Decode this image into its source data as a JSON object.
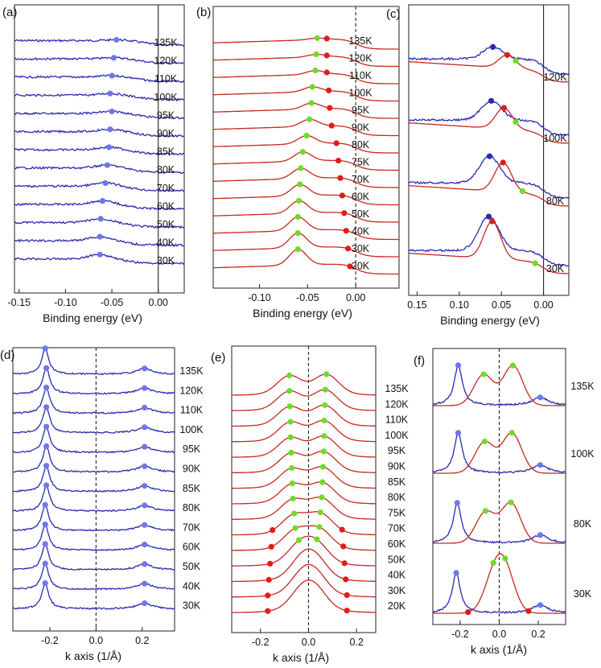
{
  "figure": {
    "colors": {
      "blue": "#2a2bb0",
      "red": "#c7281f",
      "blue_dot": "#6f78ea",
      "green_dot": "#6fdb2a",
      "red_dot": "#e21b1b",
      "frame": "#222222"
    }
  },
  "chart_data": [
    {
      "panel": "(a)",
      "type": "line",
      "subtype": "waterfall-EDC",
      "xlabel": "Binding energy (eV)",
      "ylabel": "",
      "xlim": [
        -0.155,
        0.028
      ],
      "x_ticks": [
        -0.15,
        -0.1,
        -0.05,
        0.0
      ],
      "x_tick_labels": [
        "-0.15",
        "-0.10",
        "-0.05",
        "0.00"
      ],
      "fermi_line": {
        "x": 0.0,
        "style": "solid"
      },
      "series": [
        {
          "name": "135K",
          "peak_x": -0.035,
          "peak_marker": "blue"
        },
        {
          "name": "120K",
          "peak_x": -0.038,
          "peak_marker": "blue"
        },
        {
          "name": "110K",
          "peak_x": -0.04,
          "peak_marker": "blue"
        },
        {
          "name": "100K",
          "peak_x": -0.042,
          "peak_marker": "blue"
        },
        {
          "name": "95K",
          "peak_x": -0.04,
          "peak_marker": "blue"
        },
        {
          "name": "90K",
          "peak_x": -0.042,
          "peak_marker": "blue"
        },
        {
          "name": "85K",
          "peak_x": -0.043,
          "peak_marker": "blue"
        },
        {
          "name": "80K",
          "peak_x": -0.045,
          "peak_marker": "blue"
        },
        {
          "name": "70K",
          "peak_x": -0.047,
          "peak_marker": "blue"
        },
        {
          "name": "60K",
          "peak_x": -0.05,
          "peak_marker": "blue"
        },
        {
          "name": "50K",
          "peak_x": -0.052,
          "peak_marker": "blue"
        },
        {
          "name": "40K",
          "peak_x": -0.053,
          "peak_marker": "blue"
        },
        {
          "name": "30K",
          "peak_x": -0.053,
          "peak_marker": "blue"
        }
      ]
    },
    {
      "panel": "(b)",
      "type": "line",
      "subtype": "waterfall-EDC-fit",
      "xlabel": "Binding energy (eV)",
      "ylabel": "",
      "xlim": [
        -0.148,
        0.045
      ],
      "x_ticks": [
        -0.1,
        -0.05,
        0.0
      ],
      "x_tick_labels": [
        "-0.10",
        "-0.05",
        "0.00"
      ],
      "fermi_line": {
        "x": 0.0,
        "style": "dashed"
      },
      "series": [
        {
          "name": "135K",
          "green_x": -0.04,
          "red_x": -0.03
        },
        {
          "name": "120K",
          "green_x": -0.041,
          "red_x": -0.03
        },
        {
          "name": "110K",
          "green_x": -0.042,
          "red_x": -0.03
        },
        {
          "name": "100K",
          "green_x": -0.045,
          "red_x": -0.028
        },
        {
          "name": "95K",
          "green_x": -0.046,
          "red_x": -0.027
        },
        {
          "name": "90K",
          "green_x": -0.048,
          "red_x": -0.025
        },
        {
          "name": "80K",
          "green_x": -0.051,
          "red_x": -0.02
        },
        {
          "name": "75K",
          "green_x": -0.055,
          "red_x": -0.018
        },
        {
          "name": "70K",
          "green_x": -0.057,
          "red_x": -0.016
        },
        {
          "name": "60K",
          "green_x": -0.058,
          "red_x": -0.014
        },
        {
          "name": "50K",
          "green_x": -0.059,
          "red_x": -0.012
        },
        {
          "name": "40K",
          "green_x": -0.06,
          "red_x": -0.01
        },
        {
          "name": "30K",
          "green_x": -0.06,
          "red_x": -0.008
        },
        {
          "name": "20K",
          "green_x": -0.06,
          "red_x": -0.006
        }
      ]
    },
    {
      "panel": "(c)",
      "type": "line",
      "subtype": "EDC-comparison",
      "xlabel": "Binding energy (eV)",
      "ylabel": "",
      "xlim": [
        0.16,
        -0.03
      ],
      "x_ticks": [
        0.15,
        0.1,
        0.05,
        0.0
      ],
      "x_tick_labels": [
        "0.15",
        "0.10",
        "0.05",
        "0.00"
      ],
      "fermi_line": {
        "x": 0.0,
        "style": "solid"
      },
      "series": [
        {
          "name": "120K",
          "blue_peak": 0.06,
          "red_peak": 0.043,
          "green_x": 0.033
        },
        {
          "name": "100K",
          "blue_peak": 0.062,
          "red_peak": 0.047,
          "green_x": 0.033
        },
        {
          "name": "80K",
          "blue_peak": 0.064,
          "red_peak": 0.048,
          "green_x": 0.025
        },
        {
          "name": "30K",
          "blue_peak": 0.065,
          "red_peak": 0.061,
          "green_x": 0.01
        }
      ]
    },
    {
      "panel": "(d)",
      "type": "line",
      "subtype": "waterfall-MDC",
      "xlabel": "k axis (1/Å)",
      "ylabel": "",
      "xlim": [
        -0.36,
        0.34
      ],
      "x_ticks": [
        -0.2,
        0.0,
        0.2
      ],
      "x_tick_labels": [
        "-0.2",
        "0.0",
        "0.2"
      ],
      "zero_line": {
        "x": 0.0,
        "style": "dashed"
      },
      "series": [
        {
          "name": "135K",
          "left_peak": -0.22,
          "right_peak": 0.21
        },
        {
          "name": "120K",
          "left_peak": -0.215,
          "right_peak": 0.21
        },
        {
          "name": "110K",
          "left_peak": -0.215,
          "right_peak": 0.21
        },
        {
          "name": "100K",
          "left_peak": -0.215,
          "right_peak": 0.21
        },
        {
          "name": "95K",
          "left_peak": -0.215,
          "right_peak": 0.21
        },
        {
          "name": "90K",
          "left_peak": -0.215,
          "right_peak": 0.21
        },
        {
          "name": "85K",
          "left_peak": -0.215,
          "right_peak": 0.21
        },
        {
          "name": "80K",
          "left_peak": -0.215,
          "right_peak": 0.21
        },
        {
          "name": "70K",
          "left_peak": -0.22,
          "right_peak": 0.21
        },
        {
          "name": "60K",
          "left_peak": -0.22,
          "right_peak": 0.21
        },
        {
          "name": "50K",
          "left_peak": -0.22,
          "right_peak": 0.21
        },
        {
          "name": "40K",
          "left_peak": -0.22,
          "right_peak": 0.21
        },
        {
          "name": "30K",
          "left_peak": -0.22,
          "right_peak": 0.21
        }
      ]
    },
    {
      "panel": "(e)",
      "type": "line",
      "subtype": "waterfall-MDC-fit",
      "xlabel": "k axis (1/Å)",
      "ylabel": "",
      "xlim": [
        -0.32,
        0.28
      ],
      "x_ticks": [
        -0.2,
        0.0,
        0.2
      ],
      "x_tick_labels": [
        "-0.2",
        "0.0",
        "0.2"
      ],
      "zero_line": {
        "x": 0.0,
        "style": "dashed"
      },
      "series": [
        {
          "name": "135K",
          "green": [
            -0.08,
            0.075
          ],
          "red": []
        },
        {
          "name": "120K",
          "green": [
            -0.08,
            0.07
          ],
          "red": []
        },
        {
          "name": "110K",
          "green": [
            -0.078,
            0.068
          ],
          "red": []
        },
        {
          "name": "100K",
          "green": [
            -0.075,
            0.065
          ],
          "red": []
        },
        {
          "name": "95K",
          "green": [
            -0.075,
            0.065
          ],
          "red": []
        },
        {
          "name": "90K",
          "green": [
            -0.072,
            0.063
          ],
          "red": []
        },
        {
          "name": "85K",
          "green": [
            -0.07,
            0.06
          ],
          "red": []
        },
        {
          "name": "80K",
          "green": [
            -0.068,
            0.058
          ],
          "red": []
        },
        {
          "name": "75K",
          "green": [
            -0.065,
            0.055
          ],
          "red": []
        },
        {
          "name": "70K",
          "green": [
            -0.06,
            0.05
          ],
          "red": [
            -0.15,
            0.14
          ]
        },
        {
          "name": "60K",
          "green": [
            -0.055,
            0.045
          ],
          "red": [
            -0.155,
            0.145
          ]
        },
        {
          "name": "50K",
          "green": [
            -0.04,
            0.035
          ],
          "red": [
            -0.16,
            0.15
          ]
        },
        {
          "name": "40K",
          "green": [],
          "red": [
            -0.165,
            0.155
          ]
        },
        {
          "name": "30K",
          "green": [],
          "red": [
            -0.17,
            0.16
          ]
        },
        {
          "name": "20K",
          "green": [],
          "red": [
            -0.17,
            0.16
          ]
        }
      ]
    },
    {
      "panel": "(f)",
      "type": "line",
      "subtype": "MDC-comparison",
      "xlabel": "k axis (1/Å)",
      "ylabel": "",
      "xlim": [
        -0.34,
        0.34
      ],
      "x_ticks": [
        -0.2,
        0.0,
        0.2
      ],
      "x_tick_labels": [
        "-0.2",
        "0.0",
        "0.2"
      ],
      "zero_line": {
        "x": 0.0,
        "style": "dashed"
      },
      "series": [
        {
          "name": "135K",
          "blue_left": -0.21,
          "blue_right": 0.21,
          "green": [
            -0.08,
            0.07
          ],
          "red": []
        },
        {
          "name": "100K",
          "blue_left": -0.21,
          "blue_right": 0.21,
          "green": [
            -0.075,
            0.065
          ],
          "red": []
        },
        {
          "name": "80K",
          "blue_left": -0.215,
          "blue_right": 0.21,
          "green": [
            -0.07,
            0.06
          ],
          "red": []
        },
        {
          "name": "30K",
          "blue_left": -0.22,
          "blue_right": 0.21,
          "green": [
            -0.03,
            0.03
          ],
          "red": [
            -0.16,
            0.15
          ]
        }
      ]
    }
  ]
}
